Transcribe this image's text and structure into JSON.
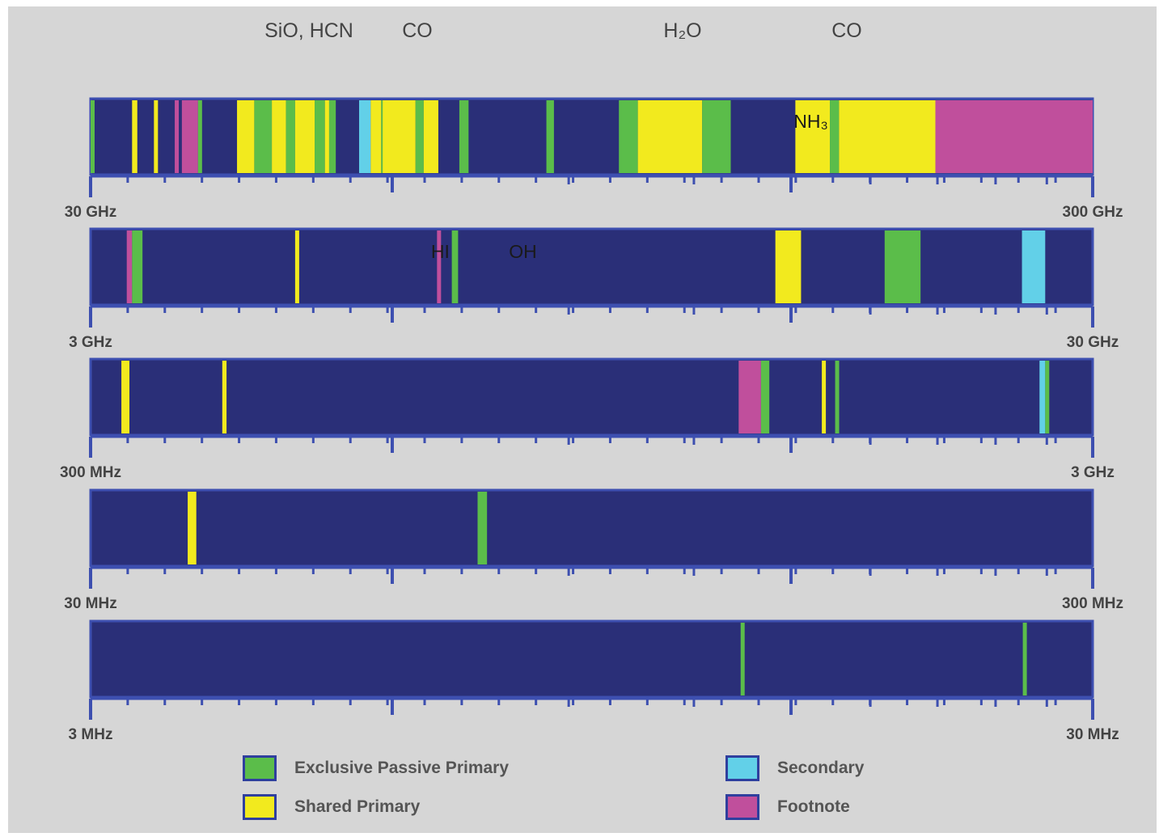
{
  "chart_data": {
    "type": "spectrum-bands",
    "molecule_labels_top": [
      "SiO, HCN",
      "CO",
      "H₂O",
      "CO"
    ],
    "colors": {
      "background": "#2a2f78",
      "exclusive_passive_primary": "#5bbd4a",
      "shared_primary": "#f2ea1e",
      "secondary": "#62d0e8",
      "footnote": "#c04f9c",
      "frame": "#3d4fb0"
    },
    "legend": [
      {
        "key": "exclusive_passive_primary",
        "label": "Exclusive Passive Primary"
      },
      {
        "key": "shared_primary",
        "label": "Shared Primary"
      },
      {
        "key": "secondary",
        "label": "Secondary"
      },
      {
        "key": "footnote",
        "label": "Footnote"
      }
    ],
    "scale": "log",
    "rows": [
      {
        "min_label": "30 GHz",
        "max_label": "300 GHz",
        "min": 30,
        "max": 300,
        "unit": "GHz",
        "bands": [
          {
            "c": "exclusive_passive_primary",
            "from": 30.0,
            "to": 30.2
          },
          {
            "c": "shared_primary",
            "from": 33.0,
            "to": 33.4
          },
          {
            "c": "shared_primary",
            "from": 34.7,
            "to": 35.0
          },
          {
            "c": "footnote",
            "from": 36.4,
            "to": 36.7
          },
          {
            "c": "footnote",
            "from": 37.0,
            "to": 38.4
          },
          {
            "c": "exclusive_passive_primary",
            "from": 38.4,
            "to": 38.6
          },
          {
            "c": "shared_primary",
            "from": 42.0,
            "to": 43.7
          },
          {
            "c": "exclusive_passive_primary",
            "from": 43.7,
            "to": 45.5
          },
          {
            "c": "shared_primary",
            "from": 45.5,
            "to": 47.0
          },
          {
            "c": "exclusive_passive_primary",
            "from": 47.0,
            "to": 48.0
          },
          {
            "c": "shared_primary",
            "from": 48.0,
            "to": 50.2
          },
          {
            "c": "exclusive_passive_primary",
            "from": 50.2,
            "to": 51.4
          },
          {
            "c": "shared_primary",
            "from": 51.4,
            "to": 51.9
          },
          {
            "c": "exclusive_passive_primary",
            "from": 51.9,
            "to": 52.7
          },
          {
            "c": "secondary",
            "from": 55.6,
            "to": 57.1
          },
          {
            "c": "shared_primary",
            "from": 57.1,
            "to": 58.5
          },
          {
            "c": "exclusive_passive_primary",
            "from": 58.5,
            "to": 58.7
          },
          {
            "c": "shared_primary",
            "from": 58.7,
            "to": 63.3
          },
          {
            "c": "exclusive_passive_primary",
            "from": 63.3,
            "to": 64.5
          },
          {
            "c": "shared_primary",
            "from": 64.5,
            "to": 66.7
          },
          {
            "c": "exclusive_passive_primary",
            "from": 70.0,
            "to": 71.5
          },
          {
            "c": "exclusive_passive_primary",
            "from": 85.5,
            "to": 87.0
          },
          {
            "c": "exclusive_passive_primary",
            "from": 101.0,
            "to": 105.5
          },
          {
            "c": "shared_primary",
            "from": 105.5,
            "to": 122.3
          },
          {
            "c": "exclusive_passive_primary",
            "from": 122.3,
            "to": 130.6
          },
          {
            "c": "shared_primary",
            "from": 151.5,
            "to": 164.0
          },
          {
            "c": "exclusive_passive_primary",
            "from": 164.0,
            "to": 167.5
          },
          {
            "c": "shared_primary",
            "from": 167.5,
            "to": 209.0
          },
          {
            "c": "footnote",
            "from": 209.0,
            "to": 300.0
          }
        ],
        "annotations": [
          {
            "text": "NH₃",
            "at": 157.0
          }
        ]
      },
      {
        "min_label": "3 GHz",
        "max_label": "30 GHz",
        "min": 3,
        "max": 30,
        "unit": "GHz",
        "bands": [
          {
            "c": "footnote",
            "from": 3.26,
            "to": 3.3
          },
          {
            "c": "exclusive_passive_primary",
            "from": 3.3,
            "to": 3.38
          },
          {
            "c": "shared_primary",
            "from": 4.8,
            "to": 4.84
          },
          {
            "c": "footnote",
            "from": 6.65,
            "to": 6.69
          },
          {
            "c": "exclusive_passive_primary",
            "from": 6.88,
            "to": 6.98
          },
          {
            "c": "shared_primary",
            "from": 14.47,
            "to": 15.35
          },
          {
            "c": "exclusive_passive_primary",
            "from": 18.6,
            "to": 20.2
          },
          {
            "c": "secondary",
            "from": 25.5,
            "to": 26.9
          }
        ],
        "annotations": [
          {
            "text": "HI",
            "at": 6.7
          },
          {
            "text": "OH",
            "at": 8.1
          }
        ]
      },
      {
        "min_label": "300 MHz",
        "max_label": "3 GHz",
        "min": 300,
        "max": 3000,
        "unit": "MHz",
        "bands": [
          {
            "c": "shared_primary",
            "from": 322,
            "to": 328
          },
          {
            "c": "shared_primary",
            "from": 406,
            "to": 410
          },
          {
            "c": "footnote",
            "from": 1330,
            "to": 1400
          },
          {
            "c": "exclusive_passive_primary",
            "from": 1400,
            "to": 1427
          },
          {
            "c": "shared_primary",
            "from": 1610,
            "to": 1613
          },
          {
            "c": "exclusive_passive_primary",
            "from": 1660,
            "to": 1670
          },
          {
            "c": "secondary",
            "from": 2655,
            "to": 2690
          },
          {
            "c": "exclusive_passive_primary",
            "from": 2690,
            "to": 2700
          }
        ],
        "annotations": []
      },
      {
        "min_label": "30 MHz",
        "max_label": "300 MHz",
        "min": 30,
        "max": 300,
        "unit": "MHz",
        "bands": [
          {
            "c": "shared_primary",
            "from": 37.5,
            "to": 38.25
          },
          {
            "c": "exclusive_passive_primary",
            "from": 73.0,
            "to": 74.6
          }
        ],
        "annotations": []
      },
      {
        "min_label": "3 MHz",
        "max_label": "30 MHz",
        "min": 3,
        "max": 30,
        "unit": "MHz",
        "bands": [
          {
            "c": "exclusive_passive_primary",
            "from": 13.36,
            "to": 13.41
          },
          {
            "c": "exclusive_passive_primary",
            "from": 25.55,
            "to": 25.67
          }
        ],
        "annotations": []
      }
    ]
  }
}
